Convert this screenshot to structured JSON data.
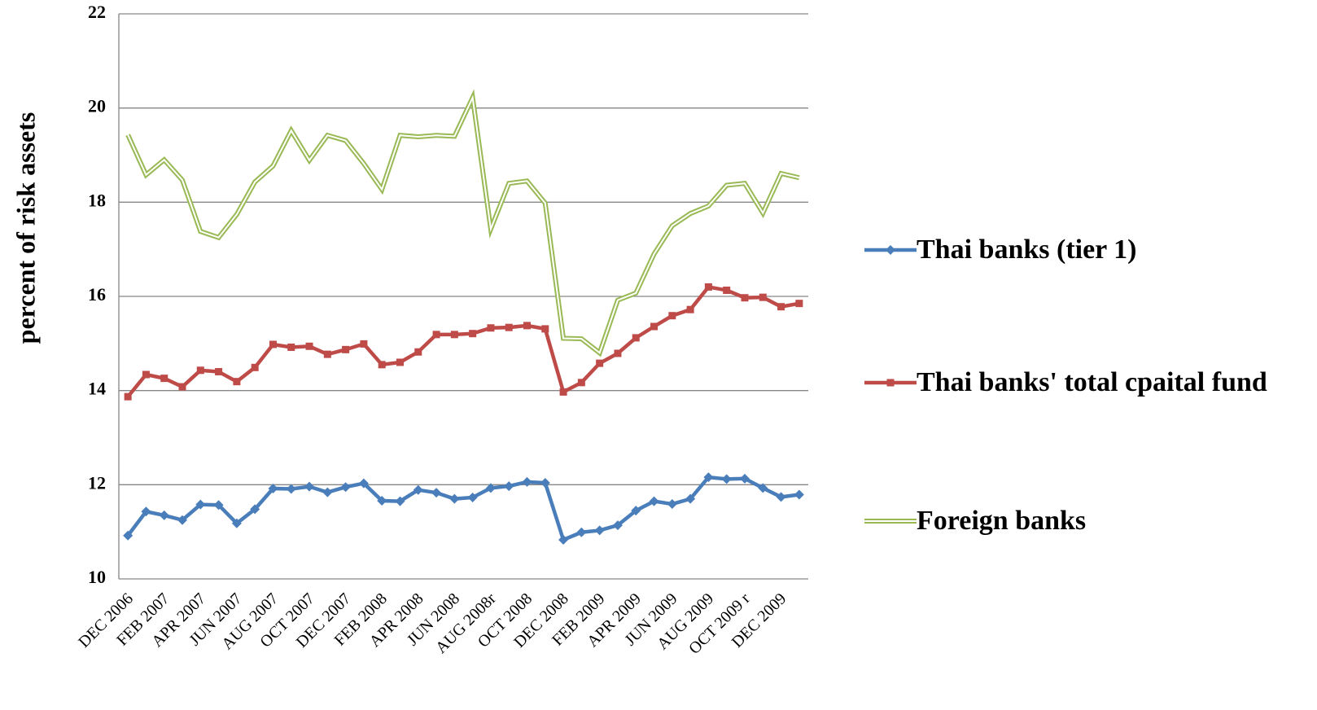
{
  "chart_data": {
    "type": "line",
    "y_label": "percent of risk assets",
    "categories": [
      "DEC 2006",
      null,
      "FEB 2007",
      null,
      "APR 2007",
      null,
      "JUN 2007",
      null,
      "AUG 2007",
      null,
      "OCT 2007",
      null,
      "DEC 2007",
      null,
      "FEB 2008",
      null,
      "APR 2008",
      null,
      "JUN 2008",
      null,
      "AUG 2008r",
      null,
      "OCT 2008",
      null,
      "DEC 2008",
      null,
      "FEB 2009",
      null,
      "APR 2009",
      null,
      "JUN 2009",
      null,
      "AUG 2009",
      null,
      "OCT 2009 r",
      null,
      "DEC 2009",
      null
    ],
    "series": [
      {
        "name": "Thai banks (tier 1)",
        "color": "#4a7ebb",
        "marker": "diamond",
        "values": [
          10.92,
          11.43,
          11.35,
          11.25,
          11.58,
          11.57,
          11.18,
          11.48,
          11.92,
          11.91,
          11.96,
          11.84,
          11.95,
          12.03,
          11.66,
          11.65,
          11.89,
          11.83,
          11.7,
          11.73,
          11.93,
          11.97,
          12.06,
          12.04,
          10.83,
          10.99,
          11.03,
          11.14,
          11.45,
          11.65,
          11.59,
          11.7,
          12.16,
          12.12,
          12.13,
          11.93,
          11.74,
          11.79
        ]
      },
      {
        "name": "Thai banks' total cpaital fund",
        "color": "#be4b48",
        "marker": "square",
        "values": [
          13.87,
          14.34,
          14.26,
          14.08,
          14.43,
          14.4,
          14.19,
          14.49,
          14.98,
          14.92,
          14.94,
          14.77,
          14.87,
          14.99,
          14.55,
          14.6,
          14.82,
          15.19,
          15.19,
          15.21,
          15.33,
          15.34,
          15.38,
          15.31,
          13.97,
          14.17,
          14.58,
          14.79,
          15.12,
          15.36,
          15.59,
          15.72,
          16.2,
          16.13,
          15.97,
          15.98,
          15.78,
          15.85
        ]
      },
      {
        "name": "Foreign banks",
        "color": "#98b954",
        "marker": "double-line",
        "values": [
          19.43,
          18.58,
          18.9,
          18.47,
          17.38,
          17.25,
          17.74,
          18.43,
          18.77,
          19.52,
          18.89,
          19.42,
          19.31,
          18.82,
          18.27,
          19.42,
          19.39,
          19.42,
          19.4,
          20.22,
          17.43,
          18.4,
          18.45,
          17.98,
          15.11,
          15.1,
          14.8,
          15.92,
          16.07,
          16.9,
          17.5,
          17.76,
          17.92,
          18.36,
          18.4,
          17.77,
          18.61,
          18.52
        ]
      }
    ],
    "ylim": [
      10,
      22
    ],
    "yticks": [
      10,
      12,
      14,
      16,
      18,
      20,
      22
    ],
    "grid": true,
    "legend": "right"
  }
}
